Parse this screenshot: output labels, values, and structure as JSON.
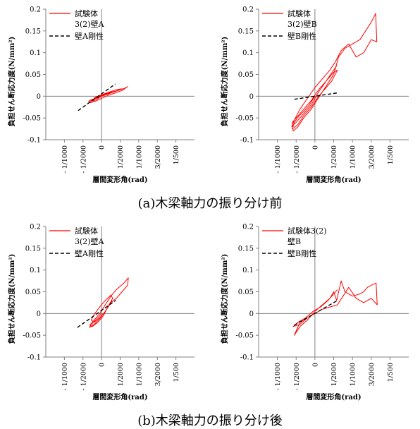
{
  "captions": {
    "a": "(a)木梁軸力の振り分け前",
    "b": "(b)木梁軸力の振り分け後"
  },
  "colors": {
    "specimen": "#ff0000",
    "stiffness": "#000000",
    "axis": "#808080"
  },
  "chart_data": [
    {
      "id": "a-left",
      "type": "line",
      "xlabel": "層間変形角(rad)",
      "ylabel": "負担せん断応力度(N/mm²)",
      "xlim": [
        -0.0015,
        0.0025
      ],
      "ylim": [
        -0.1,
        0.2
      ],
      "yticks": [
        -0.1,
        -0.05,
        0,
        0.05,
        0.1,
        0.15,
        0.2
      ],
      "ytick_labels": [
        "-0.1",
        "-0.05",
        "0",
        "0.05",
        "0.1",
        "0.15",
        "0.2"
      ],
      "xticks": [
        -0.001,
        -0.0005,
        0,
        0.0005,
        0.001,
        0.0015,
        0.002
      ],
      "xtick_labels": [
        "- 1/1000",
        "- 1/2000",
        "0",
        "1/2000",
        "1/1000",
        "3/2000",
        "1/500"
      ],
      "legend": [
        "試験体",
        "3(2)壁A",
        "壁A剛性"
      ],
      "series": [
        {
          "name": "試験体 3(2)壁A",
          "style": "solid",
          "x": [
            0,
            -0.0001,
            -0.00028,
            -0.00035,
            -0.0003,
            -0.00015,
            0,
            0.00018,
            0.00035,
            0.00055,
            0.0007,
            0.00062,
            0.0004,
            0.0002,
            0,
            -0.00015,
            -0.00025,
            -0.0003,
            -0.0002,
            -0.0001,
            0,
            0.00015,
            0.0003,
            0.00045,
            0.00055,
            0.0004,
            0.00022,
            5e-05,
            -0.0001,
            -0.0002,
            -0.00012,
            0,
            0.0001,
            0.00025,
            0.0004,
            0.00052
          ],
          "y": [
            0,
            -0.004,
            -0.008,
            -0.012,
            -0.015,
            -0.011,
            -0.005,
            0.002,
            0.007,
            0.013,
            0.022,
            0.018,
            0.012,
            0.008,
            0.003,
            -0.003,
            -0.008,
            -0.012,
            -0.01,
            -0.006,
            0,
            0.004,
            0.009,
            0.013,
            0.017,
            0.015,
            0.01,
            0.005,
            0,
            -0.004,
            -0.003,
            0.001,
            0.004,
            0.008,
            0.012,
            0.016
          ]
        },
        {
          "name": "壁A剛性",
          "style": "dashed",
          "x": [
            -0.00063,
            0.00037
          ],
          "y": [
            -0.033,
            0.028
          ]
        }
      ]
    },
    {
      "id": "a-right",
      "type": "line",
      "xlabel": "層間変形角(rad)",
      "ylabel": "負担せん断応力度(N/mm²)",
      "xlim": [
        -0.0015,
        0.0025
      ],
      "ylim": [
        -0.1,
        0.2
      ],
      "yticks": [
        -0.1,
        -0.05,
        0,
        0.05,
        0.1,
        0.15,
        0.2
      ],
      "ytick_labels": [
        "-0.1",
        "-0.05",
        "0",
        "0.05",
        "0.1",
        "0.15",
        "0.2"
      ],
      "xticks": [
        -0.001,
        -0.0005,
        0,
        0.0005,
        0.001,
        0.0015,
        0.002
      ],
      "xtick_labels": [
        "- 1/1000",
        "- 1/2000",
        "0",
        "1/2000",
        "1/1000",
        "3/2000",
        "1/500"
      ],
      "legend": [
        "試験体",
        "3(2)壁B",
        "壁B剛性"
      ],
      "series": [
        {
          "name": "試験体 3(2)壁B",
          "style": "solid",
          "x": [
            0,
            -0.00015,
            -0.0003,
            -0.00042,
            -0.00055,
            -0.0006,
            -0.00045,
            -0.0003,
            -0.0001,
            0.0001,
            0.0003,
            0.00045,
            0.0006,
            0.0005,
            0.0003,
            0.0001,
            -0.0001,
            -0.0003,
            -0.0005,
            -0.0006,
            -0.00058,
            -0.00045,
            -0.0003,
            -0.0001,
            5e-05,
            0.0002,
            0.00035,
            0.0005,
            0.00058,
            0.00063,
            0.0008,
            0.001,
            0.0012,
            0.00135,
            0.0015,
            0.00162,
            0.00165,
            0.0015,
            0.0013,
            0.0011,
            0.0009,
            0.0007,
            0.00055,
            0.0004,
            0.0002,
            0,
            -0.0002,
            -0.0004,
            -0.00055,
            -0.00062,
            -0.0005,
            -0.0003,
            -0.0001,
            0.0001,
            0.0003,
            0.0005,
            0.00058
          ],
          "y": [
            0,
            -0.02,
            -0.035,
            -0.045,
            -0.06,
            -0.075,
            -0.065,
            -0.045,
            -0.025,
            0,
            0.02,
            0.035,
            0.06,
            0.055,
            0.035,
            0.015,
            -0.01,
            -0.03,
            -0.05,
            -0.06,
            -0.08,
            -0.07,
            -0.05,
            -0.03,
            -0.01,
            0.01,
            0.03,
            0.05,
            0.075,
            0.09,
            0.11,
            0.12,
            0.13,
            0.15,
            0.17,
            0.19,
            0.125,
            0.13,
            0.1,
            0.09,
            0.12,
            0.105,
            0.08,
            0.06,
            0.04,
            0.02,
            -0.005,
            -0.03,
            -0.055,
            -0.07,
            -0.06,
            -0.04,
            -0.02,
            0.01,
            0.035,
            0.06,
            0.07
          ]
        },
        {
          "name": "壁B剛性",
          "style": "dashed",
          "x": [
            -0.00055,
            0.00063
          ],
          "y": [
            -0.007,
            0.008
          ]
        }
      ]
    },
    {
      "id": "b-left",
      "type": "line",
      "xlabel": "層間変形角(rad)",
      "ylabel": "負担せん断応力度(N/mm²)",
      "xlim": [
        -0.0015,
        0.0025
      ],
      "ylim": [
        -0.1,
        0.2
      ],
      "yticks": [
        -0.1,
        -0.05,
        0,
        0.05,
        0.1,
        0.15,
        0.2
      ],
      "ytick_labels": [
        "-0.1",
        "-0.05",
        "0",
        "0.05",
        "0.1",
        "0.15",
        "0.2"
      ],
      "xticks": [
        -0.001,
        -0.0005,
        0,
        0.0005,
        0.001,
        0.0015,
        0.002
      ],
      "xtick_labels": [
        "- 1/1000",
        "- 1/2000",
        "0",
        "1/2000",
        "1/1000",
        "3/2000",
        "1/500"
      ],
      "legend": [
        "試験体",
        "3(2)壁A",
        "壁A剛性"
      ],
      "series": [
        {
          "name": "試験体 3(2)壁A",
          "style": "solid",
          "x": [
            0,
            -0.0001,
            -0.00022,
            -0.0003,
            -0.00025,
            -0.0001,
            5e-05,
            0.00015,
            0.00025,
            0.0004,
            0.00055,
            0.0007,
            0.00072,
            0.0006,
            0.0004,
            0.00025,
            0.0001,
            -5e-05,
            -0.0002,
            -0.0003,
            -0.00032,
            -0.0002,
            -5e-05,
            0.0001,
            0.0002,
            0.0003,
            0.00025,
            0.0001,
            -5e-05,
            -0.00018,
            -0.00028,
            -0.0002,
            -5e-05,
            0.0001,
            0.0002,
            0.00028
          ],
          "y": [
            0,
            -0.01,
            -0.02,
            -0.028,
            -0.03,
            -0.02,
            -0.005,
            0.012,
            0.025,
            0.035,
            0.05,
            0.065,
            0.082,
            0.07,
            0.055,
            0.04,
            0.02,
            0,
            -0.015,
            -0.025,
            -0.032,
            -0.025,
            -0.012,
            0.005,
            0.02,
            0.035,
            0.042,
            0.03,
            0.015,
            0,
            -0.015,
            -0.02,
            -0.01,
            0.005,
            0.018,
            0.03
          ]
        },
        {
          "name": "壁A剛性",
          "style": "dashed",
          "x": [
            -0.00065,
            0.00038
          ],
          "y": [
            -0.032,
            0.03
          ]
        }
      ]
    },
    {
      "id": "b-right",
      "type": "line",
      "xlabel": "層間変形角(rad)",
      "ylabel": "負担せん断応力度(N/mm²)",
      "xlim": [
        -0.0015,
        0.0025
      ],
      "ylim": [
        -0.1,
        0.2
      ],
      "yticks": [
        -0.1,
        -0.05,
        0,
        0.05,
        0.1,
        0.15,
        0.2
      ],
      "ytick_labels": [
        "-0.1",
        "-0.05",
        "0",
        "0.05",
        "0.1",
        "0.15",
        "0.2"
      ],
      "xticks": [
        -0.001,
        -0.0005,
        0,
        0.0005,
        0.001,
        0.0015,
        0.002
      ],
      "xtick_labels": [
        "- 1/1000",
        "- 1/2000",
        "0",
        "1/2000",
        "1/1000",
        "3/2000",
        "1/500"
      ],
      "legend": [
        "試験体3(2)",
        "壁B",
        "壁B剛性"
      ],
      "series": [
        {
          "name": "試験体3(2) 壁B",
          "style": "solid",
          "x": [
            0,
            -0.0002,
            -0.0004,
            -0.0005,
            -0.00055,
            -0.0004,
            -0.0002,
            0,
            0.0002,
            0.0004,
            0.0005,
            0.00058,
            0.0007,
            0.0008,
            0.0009,
            0.001,
            0.0012,
            0.0013,
            0.0014,
            0.0015,
            0.00163,
            0.00166,
            0.0015,
            0.0013,
            0.0011,
            0.0009,
            0.00075,
            0.0006,
            0.0004,
            0.0002,
            0,
            -0.0002,
            -0.0004,
            -0.00058,
            -0.00045,
            -0.00025,
            -5e-05,
            0.00015,
            0.00035,
            0.0005,
            0.0006
          ],
          "y": [
            0,
            -0.01,
            -0.02,
            -0.04,
            -0.05,
            -0.03,
            -0.015,
            0.005,
            0.02,
            0.035,
            0.05,
            0.03,
            0.075,
            0.05,
            0.045,
            0.04,
            0.045,
            0.05,
            0.06,
            0.065,
            0.07,
            0.02,
            0.035,
            0.025,
            0.035,
            0.06,
            0.04,
            0.02,
            0.015,
            0.01,
            0,
            -0.01,
            -0.025,
            -0.03,
            -0.02,
            -0.01,
            0.005,
            0.015,
            0.03,
            0.045,
            0.055
          ]
        },
        {
          "name": "壁B剛性",
          "style": "dashed",
          "x": [
            -0.00055,
            0.0006
          ],
          "y": [
            -0.027,
            0.03
          ]
        }
      ]
    }
  ]
}
